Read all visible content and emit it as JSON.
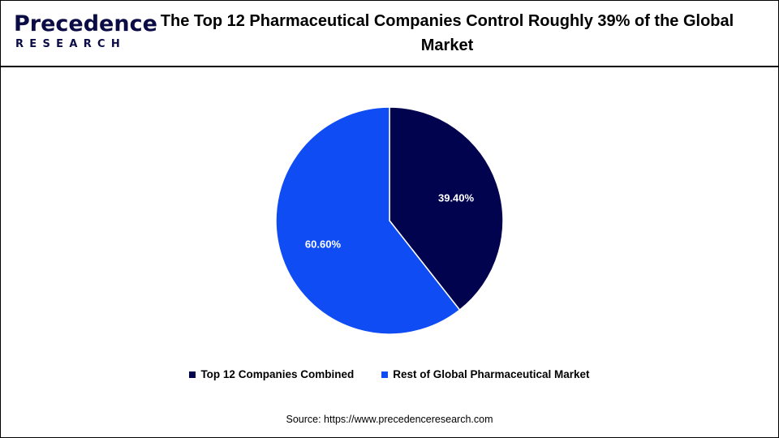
{
  "logo": {
    "main": "Precedence",
    "sub": "RESEARCH"
  },
  "colors": {
    "top12": "#02034f",
    "rest": "#0f4cf3"
  },
  "chart_data": {
    "type": "pie",
    "title": "The Top 12 Pharmaceutical Companies Control Roughly 39% of the Global Market",
    "slices": [
      {
        "label": "Top 12 Companies Combined",
        "value": 39.4,
        "display": "39.40%",
        "color": "#02034f"
      },
      {
        "label": "Rest of Global Pharmaceutical Market",
        "value": 60.6,
        "display": "60.60%",
        "color": "#0f4cf3"
      }
    ],
    "legend_position": "bottom"
  },
  "source": "Source: https://www.precedenceresearch.com"
}
